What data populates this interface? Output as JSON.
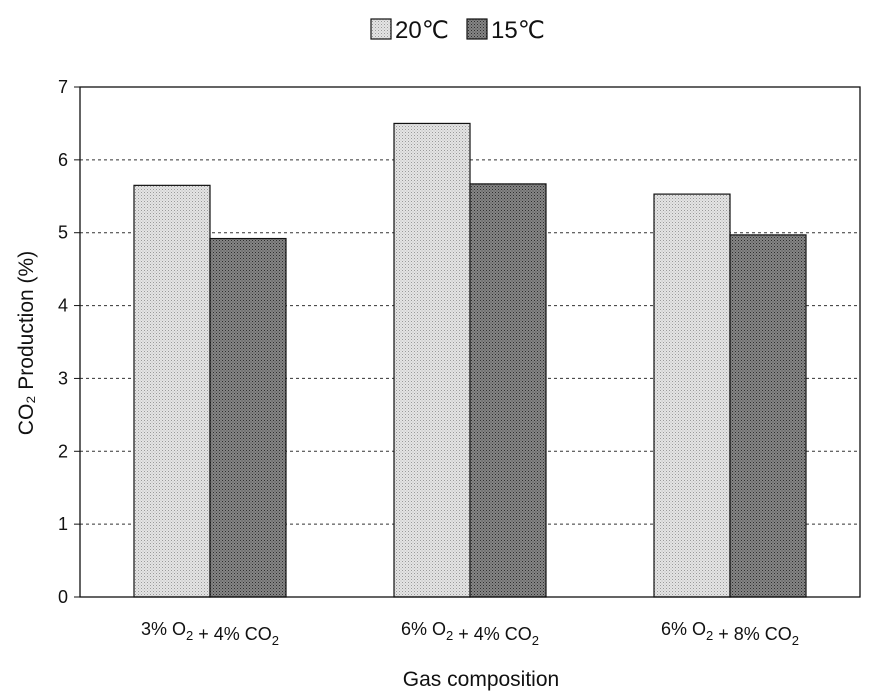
{
  "chart_data": {
    "type": "bar",
    "title": "",
    "xlabel": "Gas composition",
    "ylabel": "CO₂ Production (%)",
    "ylim": [
      0,
      7
    ],
    "yticks": [
      0,
      1,
      2,
      3,
      4,
      5,
      6,
      7
    ],
    "grid": true,
    "legend_position": "top-center",
    "categories": [
      "3% O₂ + 4% CO₂",
      "6% O₂ + 4% CO₂",
      "6% O₂ + 8% CO₂"
    ],
    "series": [
      {
        "name": "20℃",
        "values": [
          5.65,
          6.5,
          5.53
        ],
        "color": "#d6d6d6"
      },
      {
        "name": "15℃",
        "values": [
          4.92,
          5.67,
          4.97
        ],
        "color": "#6e6e6e"
      }
    ]
  }
}
